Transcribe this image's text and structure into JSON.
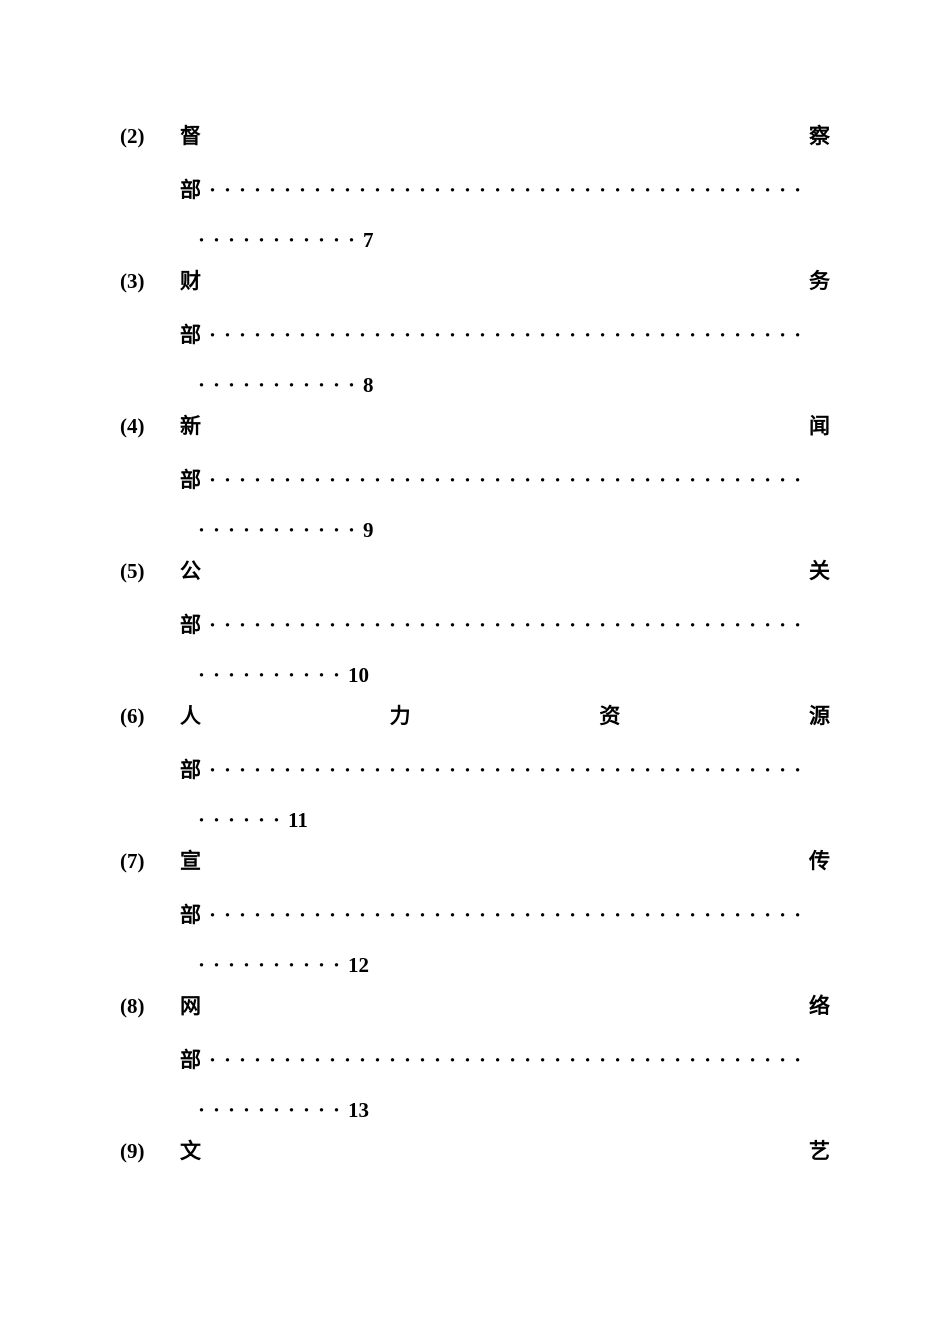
{
  "toc": {
    "font_family": "SimSun",
    "font_size_pt": 16,
    "font_weight": "bold",
    "text_color": "#000000",
    "background_color": "#ffffff",
    "dot_char": "·",
    "entries": [
      {
        "number": "(2)",
        "title_chars": [
          "督",
          "察"
        ],
        "suffix": "部",
        "page": "7",
        "dots_line3_count": 11
      },
      {
        "number": "(3)",
        "title_chars": [
          "财",
          "务"
        ],
        "suffix": "部",
        "page": "8",
        "dots_line3_count": 11
      },
      {
        "number": "(4)",
        "title_chars": [
          "新",
          "闻"
        ],
        "suffix": "部",
        "page": "9",
        "dots_line3_count": 11
      },
      {
        "number": "(5)",
        "title_chars": [
          "公",
          "关"
        ],
        "suffix": "部",
        "page": "10",
        "dots_line3_count": 10
      },
      {
        "number": "(6)",
        "title_chars": [
          "人",
          "力",
          "资",
          "源"
        ],
        "suffix": "部",
        "page": "11",
        "dots_line3_count": 6
      },
      {
        "number": "(7)",
        "title_chars": [
          "宣",
          "传"
        ],
        "suffix": "部",
        "page": "12",
        "dots_line3_count": 10
      },
      {
        "number": "(8)",
        "title_chars": [
          "网",
          "络"
        ],
        "suffix": "部",
        "page": "13",
        "dots_line3_count": 10
      },
      {
        "number": "(9)",
        "title_chars": [
          "文",
          "艺"
        ],
        "suffix": "",
        "page": "",
        "dots_line3_count": 0
      }
    ]
  }
}
